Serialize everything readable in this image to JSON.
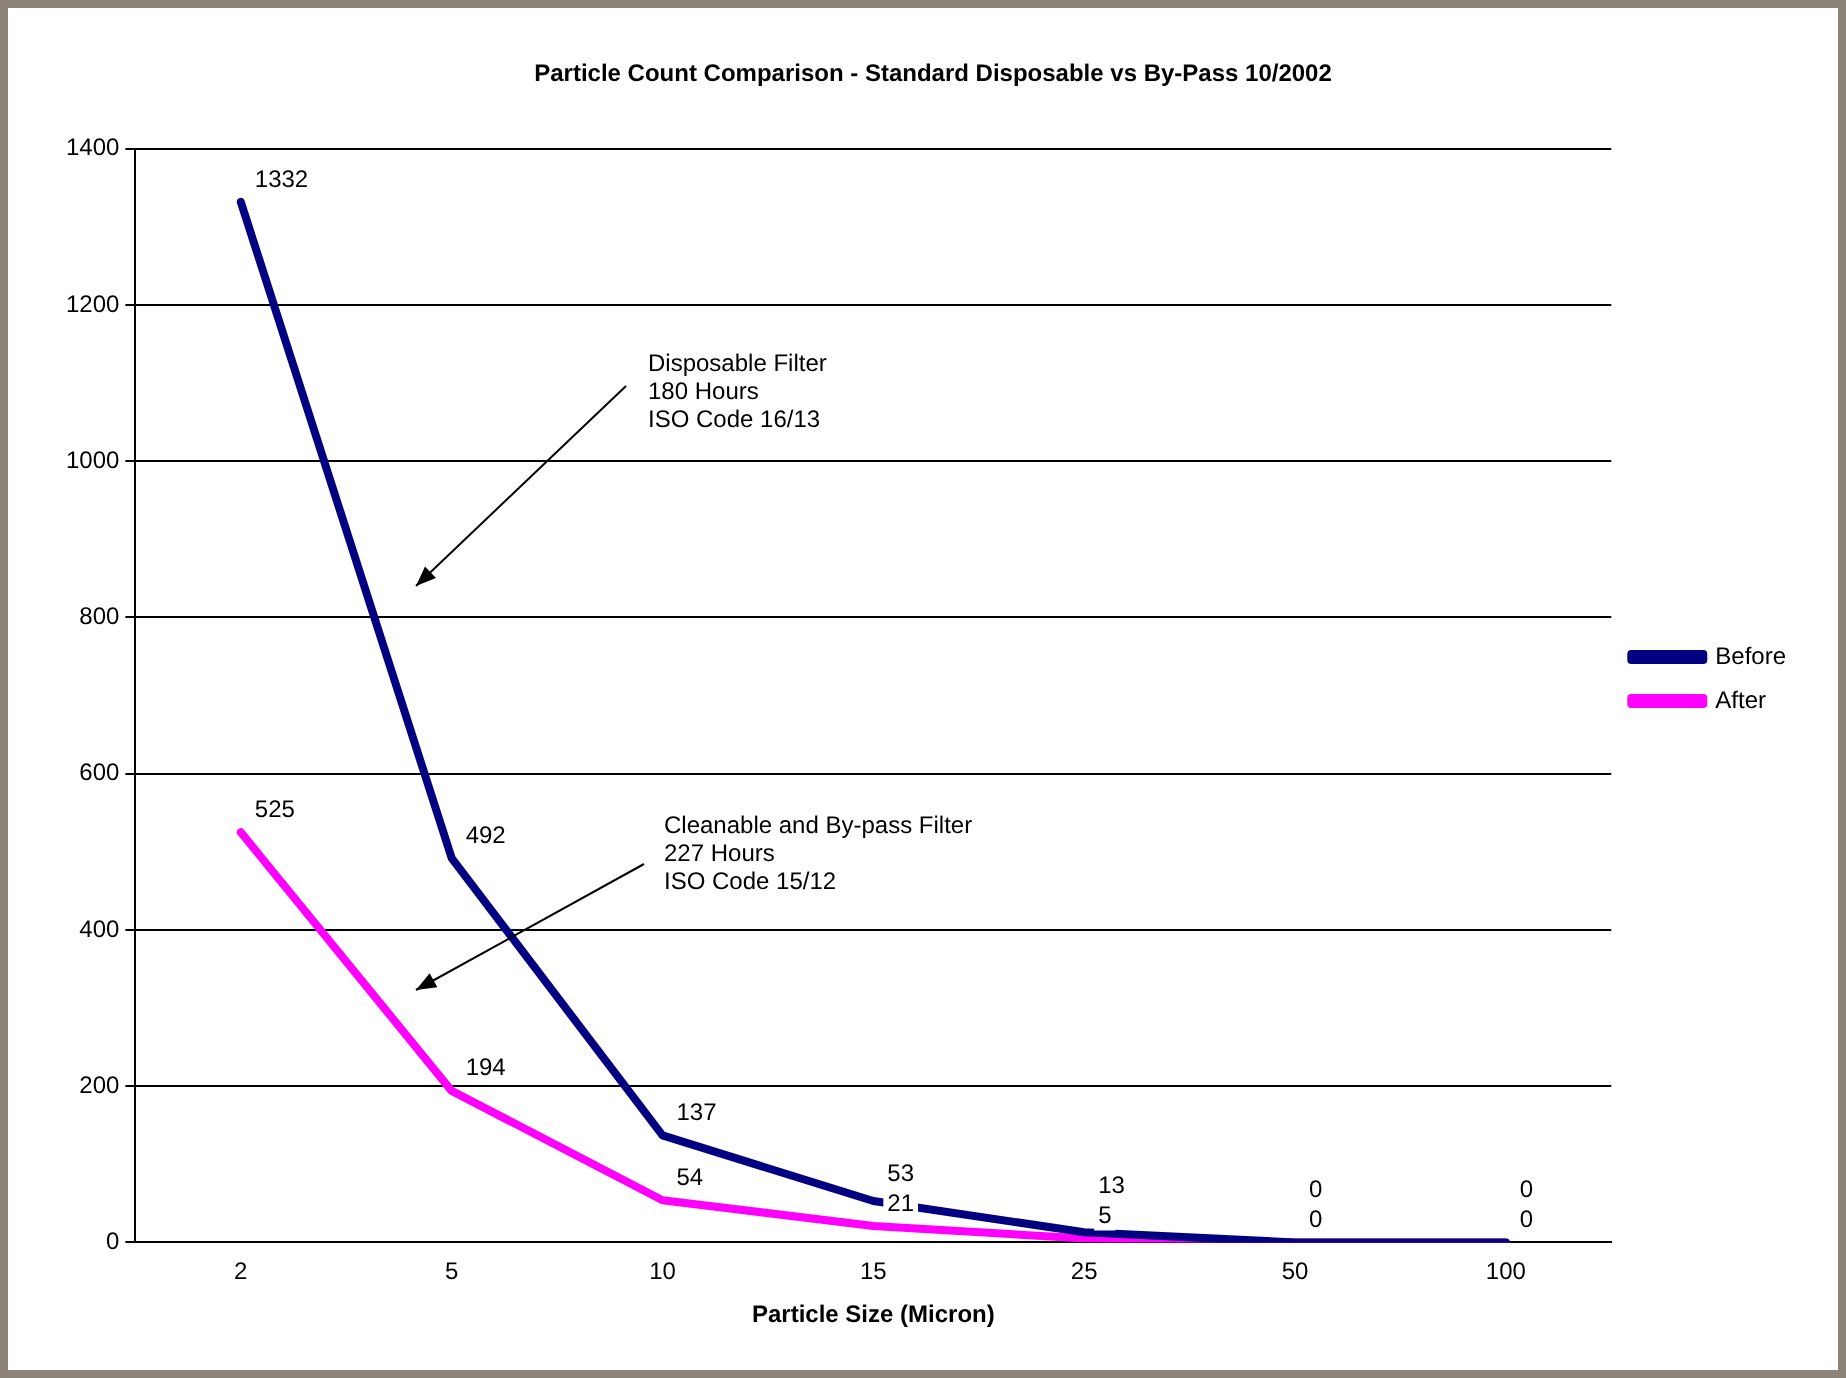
{
  "chart_data": {
    "type": "line",
    "title": "Particle Count Comparison - Standard Disposable vs By-Pass 10/2002",
    "xlabel": "Particle Size (Micron)",
    "categories": [
      "2",
      "5",
      "10",
      "15",
      "25",
      "50",
      "100"
    ],
    "series": [
      {
        "name": "Before",
        "color": "#000080",
        "values": [
          1332,
          492,
          137,
          53,
          13,
          0,
          0
        ]
      },
      {
        "name": "After",
        "color": "#ff00ff",
        "values": [
          525,
          194,
          54,
          21,
          5,
          0,
          0
        ]
      }
    ],
    "ylim": [
      0,
      1400
    ],
    "yticks": [
      0,
      200,
      400,
      600,
      800,
      1000,
      1200,
      1400
    ],
    "grid": "y",
    "legend": "right",
    "marker": "none",
    "line_style": "solid",
    "data_labels": true,
    "annotations": [
      "Disposable Filter\n180 Hours\nISO Code 16/13",
      "Cleanable and By-pass Filter\n227 Hours\nISO Code 15/12"
    ]
  }
}
